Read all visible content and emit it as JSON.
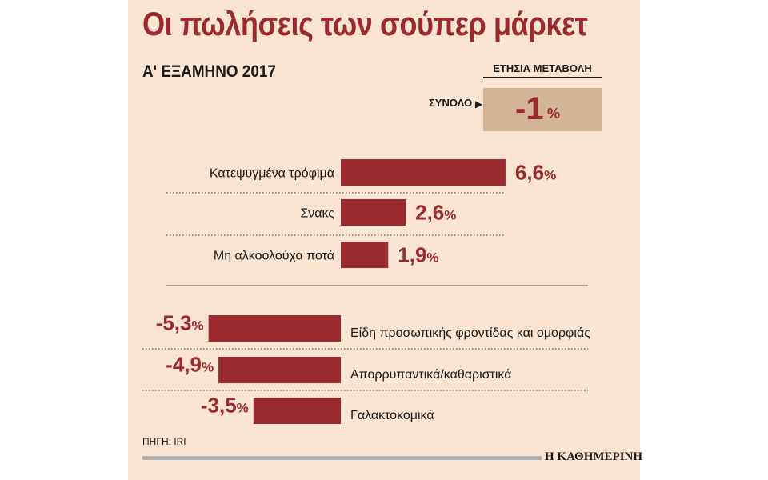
{
  "title": "Οι πωλήσεις των σούπερ μάρκετ",
  "subtitle": "Α' ΕΞΑΜΗΝΟ 2017",
  "annual_change_header": "ΕΤΗΣΙΑ ΜΕΤΑΒΟΛΗ",
  "total": {
    "label": "ΣΥΝΟΛΟ",
    "value": "-1",
    "pct": "%"
  },
  "source": "ΠΗΓΗ: IRI",
  "brand": "Η ΚΑΘΗΜΕΡΙΝΗ",
  "colors": {
    "bar": "#9b2a2e",
    "panel": "#fbe4d2",
    "total_box": "#d3b496",
    "text": "#1a1a1a"
  },
  "chart_data": {
    "type": "bar",
    "orientation": "horizontal",
    "title": "Οι πωλήσεις των σούπερ μάρκετ",
    "unit": "%",
    "categories": [
      "Κατεψυγμένα τρόφιμα",
      "Σνακς",
      "Μη αλκοολούχα ποτά",
      "Είδη προσωπικής φροντίδας και ομορφιάς",
      "Απορρυπαντικά/καθαριστικά",
      "Γαλακτοκομικά"
    ],
    "values": [
      6.6,
      2.6,
      1.9,
      -5.3,
      -4.9,
      -3.5
    ],
    "value_labels": [
      "6,6",
      "2,6",
      "1,9",
      "-5,3",
      "-4,9",
      "-3,5"
    ],
    "baseline": 0
  }
}
